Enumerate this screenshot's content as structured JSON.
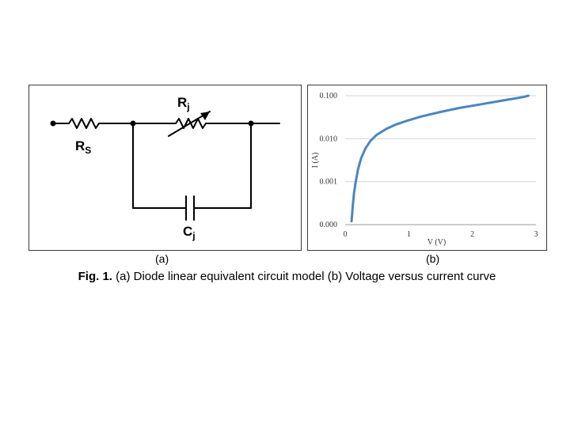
{
  "figure": {
    "subpanel_a_label": "(a)",
    "subpanel_b_label": "(b)",
    "caption_prefix": "Fig. 1.",
    "caption_text": " (a) Diode linear equivalent circuit model (b) Voltage versus current curve"
  },
  "circuit": {
    "rs_main": "R",
    "rs_sub": "S",
    "rj_main": "R",
    "rj_sub": "j",
    "cj_main": "C",
    "cj_sub": "j"
  },
  "chart_data": {
    "type": "line",
    "xlabel": "V (V)",
    "ylabel": "I (A)",
    "x_ticks": [
      "0",
      "1",
      "2",
      "3"
    ],
    "y_ticks": [
      "0.000",
      "0.001",
      "0.010",
      "0.100"
    ],
    "xlim": [
      0,
      3
    ],
    "yscale": "log",
    "grid": true,
    "line_color": "#4a86c0",
    "series": [
      {
        "x": [
          0.1,
          0.11,
          0.12,
          0.14,
          0.16,
          0.2,
          0.25,
          0.32,
          0.4,
          0.5,
          0.65,
          0.8,
          1.0,
          1.2,
          1.5,
          1.8,
          2.1,
          2.4,
          2.6,
          2.8,
          2.88
        ],
        "y": [
          0.00012,
          0.00018,
          0.00028,
          0.00055,
          0.0009,
          0.0019,
          0.0035,
          0.006,
          0.009,
          0.0125,
          0.017,
          0.0215,
          0.027,
          0.033,
          0.042,
          0.052,
          0.062,
          0.074,
          0.083,
          0.093,
          0.1
        ]
      }
    ]
  }
}
